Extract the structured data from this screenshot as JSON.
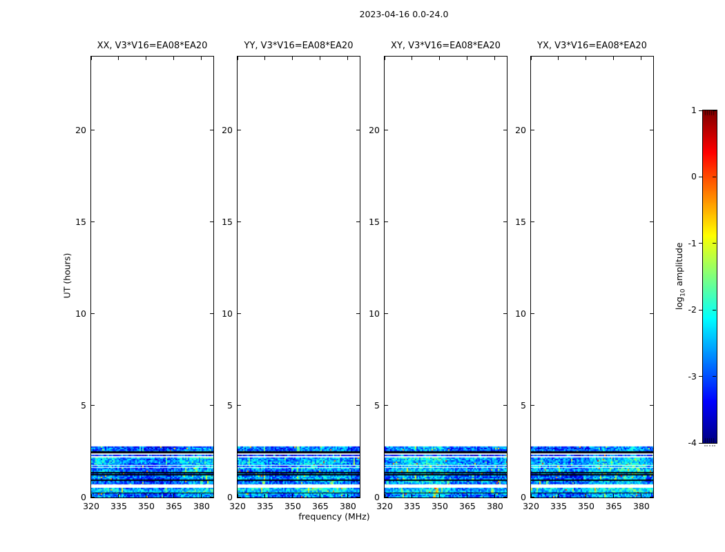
{
  "chart_data": {
    "type": "heatmap",
    "suptitle": "2023-04-16 0.0-24.0",
    "xlabel": "frequency (MHz)",
    "ylabel": "UT (hours)",
    "panels": [
      {
        "label": "XX, V3*V16=EA08*EA20"
      },
      {
        "label": "YY, V3*V16=EA08*EA20"
      },
      {
        "label": "XY, V3*V16=EA08*EA20"
      },
      {
        "label": "YX, V3*V16=EA08*EA20"
      }
    ],
    "x_range": [
      320,
      386.4
    ],
    "x_ticks": [
      320,
      335,
      350,
      365,
      380
    ],
    "y_range": [
      0,
      24
    ],
    "y_ticks": [
      0,
      5,
      10,
      15,
      20
    ],
    "grid": false,
    "description": "Cross-power dynamic spectra; visible emission only between 0 and ~2.8 UT hours, noisy blue/cyan band (log10 amplitude mostly -3.5 to -1.5) with horizontal blank gaps and dark flagged rows; upper 21 hours blank.",
    "data_band": {
      "time_range_hours": [
        0,
        2.77
      ],
      "typical_level_log10": -2.8,
      "stripes": [
        {
          "from_h": 2.5,
          "to_h": 2.77,
          "kind": "noise",
          "level": -2.95
        },
        {
          "from_h": 2.42,
          "to_h": 2.5,
          "kind": "line"
        },
        {
          "from_h": 2.33,
          "to_h": 2.42,
          "kind": "gap"
        },
        {
          "from_h": 2.25,
          "to_h": 2.33,
          "kind": "noise",
          "level": -3.25
        },
        {
          "from_h": 2.16,
          "to_h": 2.25,
          "kind": "gap"
        },
        {
          "from_h": 1.77,
          "to_h": 2.16,
          "kind": "noise",
          "level": -2.6
        },
        {
          "from_h": 1.71,
          "to_h": 1.77,
          "kind": "gap"
        },
        {
          "from_h": 1.65,
          "to_h": 1.71,
          "kind": "noise",
          "level": -2.8
        },
        {
          "from_h": 1.6,
          "to_h": 1.65,
          "kind": "gap"
        },
        {
          "from_h": 1.39,
          "to_h": 1.6,
          "kind": "noise",
          "level": -2.7
        },
        {
          "from_h": 1.33,
          "to_h": 1.39,
          "kind": "line"
        },
        {
          "from_h": 1.26,
          "to_h": 1.33,
          "kind": "noise",
          "level": -2.85
        },
        {
          "from_h": 1.21,
          "to_h": 1.26,
          "kind": "line"
        },
        {
          "from_h": 0.98,
          "to_h": 1.21,
          "kind": "noise",
          "level": -2.8
        },
        {
          "from_h": 0.92,
          "to_h": 0.98,
          "kind": "line"
        },
        {
          "from_h": 0.73,
          "to_h": 0.92,
          "kind": "noise",
          "level": -2.8
        },
        {
          "from_h": 0.54,
          "to_h": 0.73,
          "kind": "gap"
        },
        {
          "from_h": 0.28,
          "to_h": 0.54,
          "kind": "noise",
          "level": -2.5
        },
        {
          "from_h": 0.23,
          "to_h": 0.28,
          "kind": "line"
        },
        {
          "from_h": 0.0,
          "to_h": 0.23,
          "kind": "noise",
          "level": -2.8
        }
      ]
    },
    "colorbar": {
      "label": "log10 amplitude",
      "label_parts": {
        "fn": "log",
        "sub": "10",
        "rest": " amplitude"
      },
      "range": [
        -4,
        1
      ],
      "ticks": [
        1,
        0,
        -1,
        -2,
        -3,
        -4
      ],
      "colormap": "jet",
      "legend_position": "right"
    },
    "colors": {
      "background": "#ffffff",
      "axes": "#000000",
      "band_low": "#000080",
      "band_high": "#800000"
    }
  }
}
